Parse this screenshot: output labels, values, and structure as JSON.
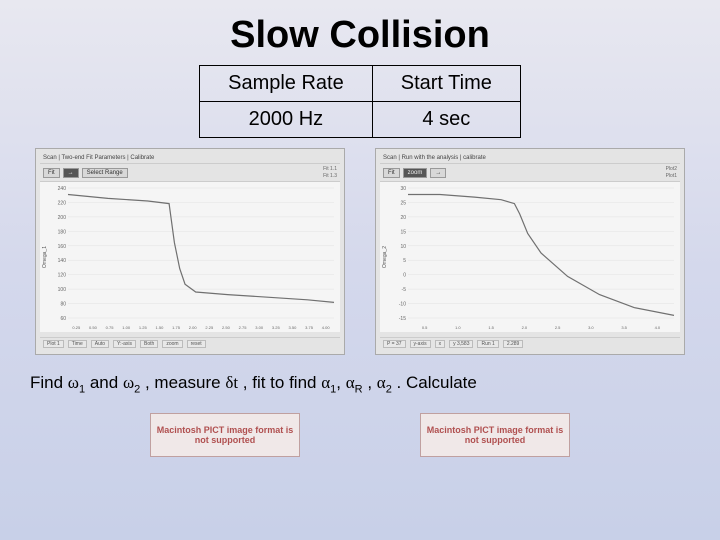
{
  "title": "Slow Collision",
  "table": {
    "headers": [
      "Sample Rate",
      "Start Time"
    ],
    "values": [
      "2000 Hz",
      "4 sec"
    ]
  },
  "chart_left": {
    "toolbar_tabs": "Scan | Two-end Fit Parameters | Calibrate",
    "btn1": "Fit",
    "btn2": "→",
    "btn3": "Select Range",
    "right_labels": [
      "Fit 1.1",
      "Fit 1.3"
    ],
    "y_ticks": [
      240,
      220,
      200,
      180,
      160,
      140,
      120,
      100,
      80,
      60
    ],
    "y_label": "Omega_1",
    "x_ticks": [
      "0.25",
      "0.50",
      "0.75",
      "1.00",
      "1.25",
      "1.50",
      "1.75",
      "2.00",
      "2.25",
      "2.50",
      "2.75",
      "3.00",
      "3.25",
      "3.50",
      "3.75",
      "4.00"
    ],
    "line_points": [
      [
        0,
        0.05
      ],
      [
        0.15,
        0.08
      ],
      [
        0.3,
        0.1
      ],
      [
        0.38,
        0.12
      ],
      [
        0.4,
        0.42
      ],
      [
        0.42,
        0.62
      ],
      [
        0.44,
        0.74
      ],
      [
        0.48,
        0.8
      ],
      [
        0.6,
        0.82
      ],
      [
        0.75,
        0.84
      ],
      [
        0.9,
        0.86
      ],
      [
        1.0,
        0.88
      ]
    ],
    "footer": [
      "Plot 1",
      "Time",
      "Auto",
      "Y:-axis",
      "Both",
      "zoom",
      "reset"
    ],
    "bg_color": "#f5f5f5",
    "line_color": "#707070",
    "grid_color": "#dddddd"
  },
  "chart_right": {
    "toolbar_tabs": "Scan | Run with the analysis | calibrate",
    "btn1": "Fit",
    "btn2": "zoom",
    "btn3": "→",
    "right_labels": [
      "Plot2",
      "Plot1"
    ],
    "y_ticks": [
      30,
      25,
      20,
      15,
      10,
      5,
      0,
      -5,
      -10,
      -15
    ],
    "y_label": "Omega_2",
    "x_ticks": [
      "0.5",
      "1.0",
      "1.5",
      "2.0",
      "2.5",
      "3.0",
      "3.5",
      "4.0"
    ],
    "line_points": [
      [
        0,
        0.05
      ],
      [
        0.12,
        0.05
      ],
      [
        0.25,
        0.07
      ],
      [
        0.35,
        0.09
      ],
      [
        0.4,
        0.12
      ],
      [
        0.42,
        0.2
      ],
      [
        0.45,
        0.35
      ],
      [
        0.5,
        0.5
      ],
      [
        0.6,
        0.68
      ],
      [
        0.72,
        0.82
      ],
      [
        0.85,
        0.92
      ],
      [
        1.0,
        0.98
      ]
    ],
    "footer": [
      "P = 37",
      "y-axis",
      "x",
      "y 3,583",
      "Run 1",
      "2.289"
    ],
    "bg_color": "#f5f5f5",
    "line_color": "#707070",
    "grid_color": "#dddddd"
  },
  "instruction_parts": {
    "p1": "Find ",
    "w": "ω",
    "s1": "1",
    "p2": " and ",
    "s2": "2",
    "p3": " , measure ",
    "d": "δ",
    "t": "t",
    "p4": " , fit to find ",
    "a": "α",
    "sa1": "1",
    "p5": ", ",
    "saR": "R",
    "p6": " , ",
    "sa2": "2",
    "p7": " . Calculate"
  },
  "pict_text": "Macintosh PICT image format is not supported"
}
